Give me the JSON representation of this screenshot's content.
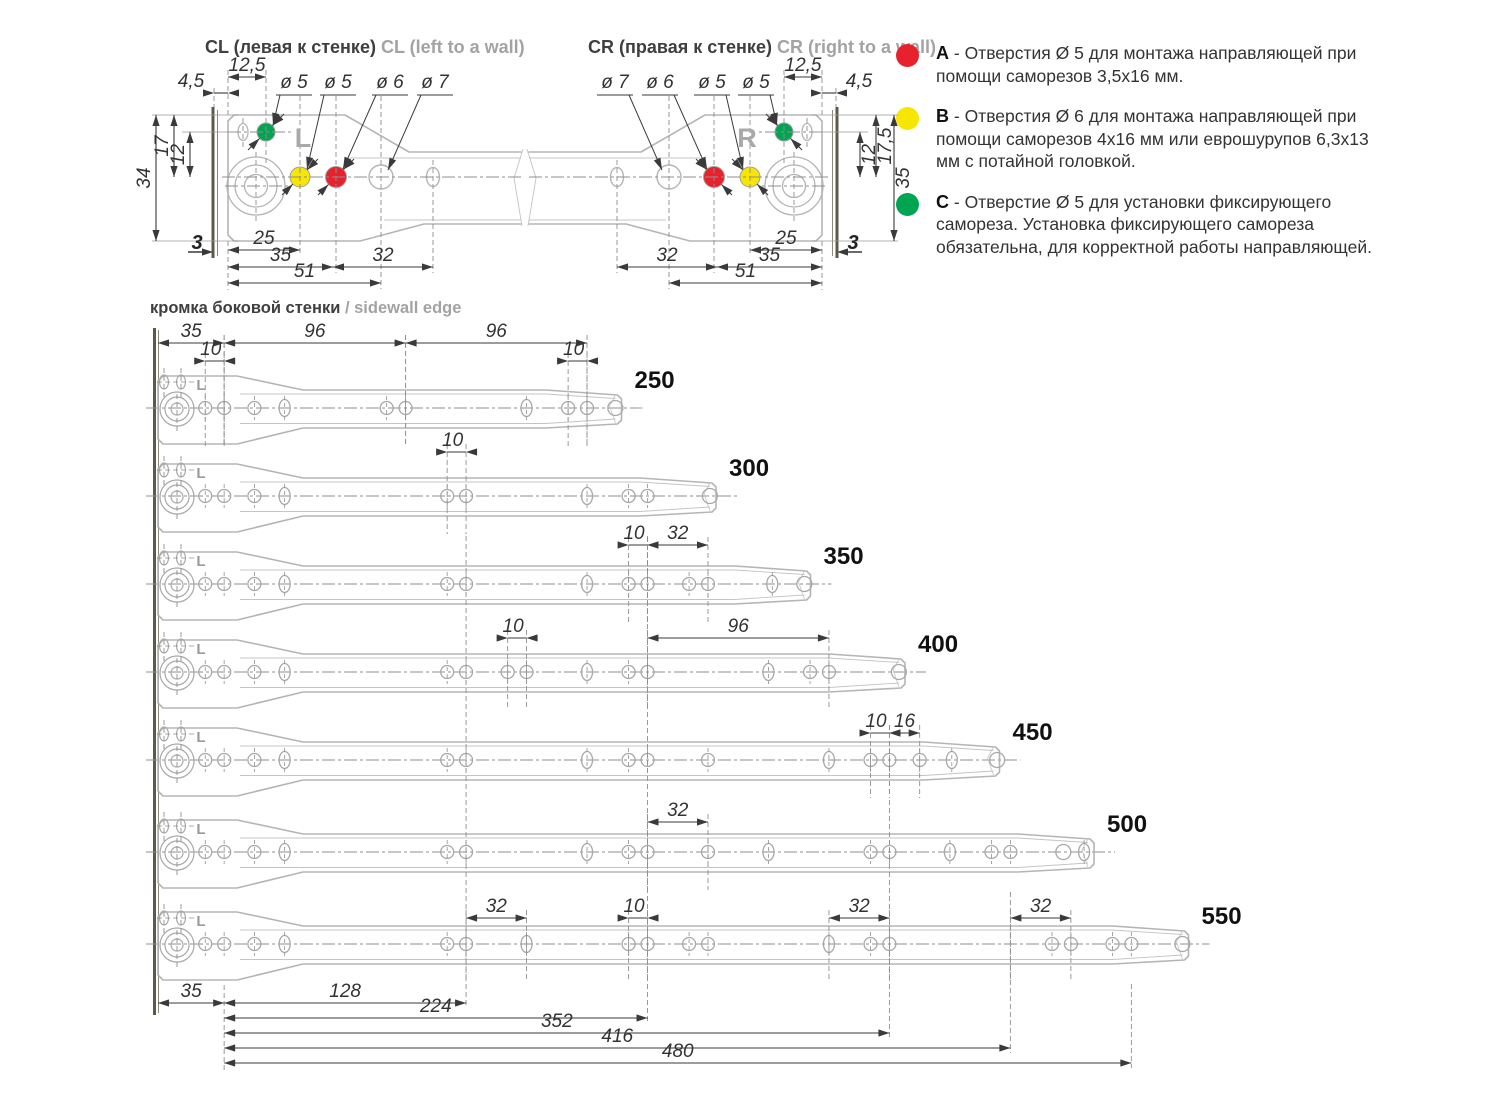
{
  "colors": {
    "red": "#e8222d",
    "yellow": "#f7e600",
    "green": "#00a551",
    "outline": "#b5b5b5",
    "outline_light": "#c4c4c4",
    "dim": "#3a3a3a",
    "dashed": "#8f8f8f",
    "wall": "#5c5a49"
  },
  "top_left": {
    "title_ru": "CL (левая к стенке)",
    "title_en": "CL (left to a wall)",
    "side_letter": "L",
    "wall_thickness_label": "3",
    "callouts": [
      "ø 5",
      "ø 5",
      "ø 6",
      "ø 7"
    ],
    "dims": {
      "offset_top": "12,5",
      "gap": "4,5",
      "v_inner": "12",
      "v_mid": "17",
      "v_outer": "34",
      "b1": "25",
      "b2": "35",
      "b3": "32",
      "b4": "51"
    }
  },
  "top_right": {
    "title_ru": "CR (правая к стенке)",
    "title_en": "CR (right to a wall)",
    "side_letter": "R",
    "wall_thickness_label": "3",
    "callouts": [
      "ø 7",
      "ø 6",
      "ø 5",
      "ø 5"
    ],
    "dims": {
      "offset_top": "12,5",
      "gap": "4,5",
      "v_inner": "12",
      "v_mid": "17,5",
      "v_outer": "35",
      "b1": "25",
      "b2": "35",
      "b3": "32",
      "b4": "51"
    }
  },
  "legend": {
    "items": [
      {
        "letter": "A",
        "color_key": "red",
        "text": "- Отверстия Ø 5 для монтажа направляющей при помощи саморезов 3,5х16 мм."
      },
      {
        "letter": "B",
        "color_key": "yellow",
        "text": "- Отверстия Ø 6 для монтажа направляющей при помощи саморезов 4х16 мм или еврошурупов 6,3х13 мм с потайной головкой."
      },
      {
        "letter": "C",
        "color_key": "green",
        "text": "- Отверстие Ø 5 для установки фиксирующего самореза. Установка фиксирующего самореза обязательна, для корректной работы направляющей."
      }
    ]
  },
  "lower": {
    "edge_label_ru": "кромка боковой стенки",
    "edge_label_en": "/ sidewall edge",
    "rail_letter": "L",
    "slides": [
      {
        "label": "250",
        "length_mm": 250,
        "holes": [
          [
            25,
            "c"
          ],
          [
            35,
            "c"
          ],
          [
            51,
            "c"
          ],
          [
            67,
            "o"
          ],
          [
            121,
            "c"
          ],
          [
            131,
            "c"
          ],
          [
            195,
            "o"
          ],
          [
            217,
            "c"
          ],
          [
            227,
            "c"
          ],
          [
            242,
            "p"
          ]
        ],
        "dims": [
          [
            "35",
            0,
            35,
            0
          ],
          [
            "96",
            35,
            131,
            0
          ],
          [
            "96",
            131,
            227,
            0
          ],
          [
            "10",
            25,
            35,
            1
          ],
          [
            "10",
            217,
            227,
            1
          ]
        ]
      },
      {
        "label": "300",
        "length_mm": 300,
        "holes": [
          [
            25,
            "c"
          ],
          [
            35,
            "c"
          ],
          [
            51,
            "c"
          ],
          [
            67,
            "o"
          ],
          [
            153,
            "c"
          ],
          [
            163,
            "c"
          ],
          [
            227,
            "o"
          ],
          [
            249,
            "c"
          ],
          [
            259,
            "c"
          ],
          [
            292,
            "p"
          ]
        ],
        "dims": [
          [
            "10",
            153,
            163,
            0
          ]
        ]
      },
      {
        "label": "350",
        "length_mm": 350,
        "holes": [
          [
            25,
            "c"
          ],
          [
            35,
            "c"
          ],
          [
            51,
            "c"
          ],
          [
            67,
            "o"
          ],
          [
            153,
            "c"
          ],
          [
            163,
            "c"
          ],
          [
            227,
            "o"
          ],
          [
            249,
            "c"
          ],
          [
            259,
            "c"
          ],
          [
            281,
            "c"
          ],
          [
            291,
            "c"
          ],
          [
            325,
            "o"
          ],
          [
            342,
            "p"
          ]
        ],
        "dims": [
          [
            "10",
            249,
            259,
            0
          ],
          [
            "32",
            259,
            291,
            0
          ]
        ]
      },
      {
        "label": "400",
        "length_mm": 400,
        "holes": [
          [
            25,
            "c"
          ],
          [
            35,
            "c"
          ],
          [
            51,
            "c"
          ],
          [
            67,
            "o"
          ],
          [
            153,
            "c"
          ],
          [
            163,
            "c"
          ],
          [
            185,
            "c"
          ],
          [
            195,
            "c"
          ],
          [
            227,
            "o"
          ],
          [
            249,
            "c"
          ],
          [
            259,
            "c"
          ],
          [
            323,
            "o"
          ],
          [
            345,
            "c"
          ],
          [
            355,
            "c"
          ],
          [
            392,
            "p"
          ]
        ],
        "dims": [
          [
            "10",
            185,
            195,
            0
          ],
          [
            "96",
            259,
            355,
            0
          ]
        ]
      },
      {
        "label": "450",
        "length_mm": 450,
        "holes": [
          [
            25,
            "c"
          ],
          [
            35,
            "c"
          ],
          [
            51,
            "c"
          ],
          [
            67,
            "o"
          ],
          [
            153,
            "c"
          ],
          [
            163,
            "c"
          ],
          [
            227,
            "o"
          ],
          [
            249,
            "c"
          ],
          [
            259,
            "c"
          ],
          [
            291,
            "c"
          ],
          [
            355,
            "o"
          ],
          [
            377,
            "c"
          ],
          [
            387,
            "c"
          ],
          [
            403,
            "c"
          ],
          [
            420,
            "o"
          ],
          [
            444,
            "p"
          ]
        ],
        "dims": [
          [
            "10",
            377,
            387,
            0
          ],
          [
            "16",
            387,
            403,
            0
          ]
        ]
      },
      {
        "label": "500",
        "length_mm": 500,
        "holes": [
          [
            25,
            "c"
          ],
          [
            35,
            "c"
          ],
          [
            51,
            "c"
          ],
          [
            67,
            "o"
          ],
          [
            153,
            "c"
          ],
          [
            163,
            "c"
          ],
          [
            227,
            "o"
          ],
          [
            249,
            "c"
          ],
          [
            259,
            "c"
          ],
          [
            291,
            "c"
          ],
          [
            323,
            "o"
          ],
          [
            377,
            "c"
          ],
          [
            387,
            "c"
          ],
          [
            419,
            "o"
          ],
          [
            441,
            "c"
          ],
          [
            451,
            "c"
          ],
          [
            479,
            "p"
          ],
          [
            490,
            "o"
          ]
        ],
        "dims": [
          [
            "32",
            259,
            291,
            0
          ]
        ]
      },
      {
        "label": "550",
        "length_mm": 550,
        "holes": [
          [
            25,
            "c"
          ],
          [
            35,
            "c"
          ],
          [
            51,
            "c"
          ],
          [
            67,
            "o"
          ],
          [
            153,
            "c"
          ],
          [
            163,
            "c"
          ],
          [
            195,
            "o"
          ],
          [
            249,
            "c"
          ],
          [
            259,
            "c"
          ],
          [
            281,
            "c"
          ],
          [
            291,
            "c"
          ],
          [
            355,
            "o"
          ],
          [
            377,
            "c"
          ],
          [
            387,
            "c"
          ],
          [
            473,
            "c"
          ],
          [
            483,
            "c"
          ],
          [
            505,
            "c"
          ],
          [
            515,
            "c"
          ],
          [
            542,
            "p"
          ]
        ],
        "dims": [
          [
            "32",
            163,
            195,
            0
          ],
          [
            "10",
            249,
            259,
            0
          ],
          [
            "32",
            355,
            387,
            0
          ],
          [
            "32",
            451,
            483,
            0
          ]
        ]
      }
    ],
    "chain_dims": [
      [
        "35",
        0,
        35
      ],
      [
        "128",
        35,
        163
      ],
      [
        "224",
        35,
        259
      ],
      [
        "352",
        35,
        387
      ],
      [
        "416",
        35,
        451
      ],
      [
        "480",
        35,
        515
      ]
    ]
  }
}
